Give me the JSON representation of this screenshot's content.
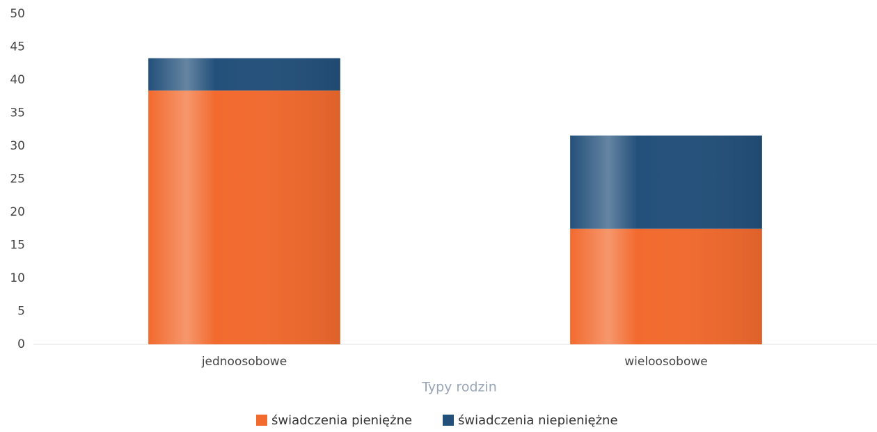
{
  "chart_data": {
    "type": "bar",
    "stacked": true,
    "x_label": "Typy rodzin",
    "categories": [
      "jednoosobowe",
      "wieloosobowe"
    ],
    "series": [
      {
        "name": "świadczenia pieniężne",
        "color": "#f26a2e",
        "values": [
          38.4,
          17.5
        ]
      },
      {
        "name": "świadczenia niepieniężne",
        "color": "#23507a",
        "values": [
          4.9,
          14.1
        ]
      }
    ],
    "ylim": [
      0,
      50
    ],
    "yticks": [
      0,
      5,
      10,
      15,
      20,
      25,
      30,
      35,
      40,
      45,
      50
    ]
  }
}
